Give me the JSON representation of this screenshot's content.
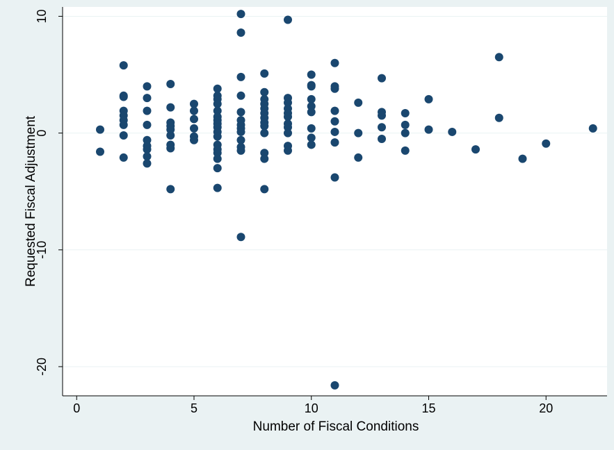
{
  "chart_data": {
    "type": "scatter",
    "title": "",
    "xlabel": "Number of Fiscal Conditions",
    "ylabel": "Requested Fiscal Adjustment",
    "xlim": [
      -0.6,
      22.6
    ],
    "ylim": [
      -22.5,
      10.8
    ],
    "xticks": [
      0,
      5,
      10,
      15,
      20
    ],
    "yticks": [
      -20,
      -10,
      0,
      10
    ],
    "grid": true,
    "legend": "none",
    "colors": {
      "outer_background": "#eaf2f3",
      "plot_background": "#ffffff",
      "marker": "#1a476f",
      "gridline": "#eaf2f3"
    },
    "points": [
      {
        "x": 1,
        "y": 0.3
      },
      {
        "x": 1,
        "y": -1.6
      },
      {
        "x": 2,
        "y": 5.8
      },
      {
        "x": 2,
        "y": 3.2
      },
      {
        "x": 2,
        "y": 3.1
      },
      {
        "x": 2,
        "y": 1.9
      },
      {
        "x": 2,
        "y": 1.5
      },
      {
        "x": 2,
        "y": 1.1
      },
      {
        "x": 2,
        "y": 0.7
      },
      {
        "x": 2,
        "y": -0.2
      },
      {
        "x": 2,
        "y": -2.1
      },
      {
        "x": 3,
        "y": 4.0
      },
      {
        "x": 3,
        "y": 3.0
      },
      {
        "x": 3,
        "y": 1.9
      },
      {
        "x": 3,
        "y": 0.7
      },
      {
        "x": 3,
        "y": -0.6
      },
      {
        "x": 3,
        "y": -1.1
      },
      {
        "x": 3,
        "y": -1.4
      },
      {
        "x": 3,
        "y": -2.0
      },
      {
        "x": 3,
        "y": -2.6
      },
      {
        "x": 4,
        "y": 4.2
      },
      {
        "x": 4,
        "y": 2.2
      },
      {
        "x": 4,
        "y": 0.9
      },
      {
        "x": 4,
        "y": 0.6
      },
      {
        "x": 4,
        "y": 0.3
      },
      {
        "x": 4,
        "y": -0.2
      },
      {
        "x": 4,
        "y": -1.0
      },
      {
        "x": 4,
        "y": -1.3
      },
      {
        "x": 4,
        "y": -4.8
      },
      {
        "x": 5,
        "y": 2.5
      },
      {
        "x": 5,
        "y": 1.9
      },
      {
        "x": 5,
        "y": 1.2
      },
      {
        "x": 5,
        "y": 0.4
      },
      {
        "x": 5,
        "y": -0.3
      },
      {
        "x": 5,
        "y": -0.6
      },
      {
        "x": 6,
        "y": 3.8
      },
      {
        "x": 6,
        "y": 3.2
      },
      {
        "x": 6,
        "y": 2.9
      },
      {
        "x": 6,
        "y": 2.5
      },
      {
        "x": 6,
        "y": 1.9
      },
      {
        "x": 6,
        "y": 1.4
      },
      {
        "x": 6,
        "y": 1.1
      },
      {
        "x": 6,
        "y": 0.8
      },
      {
        "x": 6,
        "y": 0.5
      },
      {
        "x": 6,
        "y": 0.1
      },
      {
        "x": 6,
        "y": -0.3
      },
      {
        "x": 6,
        "y": -1.0
      },
      {
        "x": 6,
        "y": -1.4
      },
      {
        "x": 6,
        "y": -1.7
      },
      {
        "x": 6,
        "y": -2.2
      },
      {
        "x": 6,
        "y": -3.0
      },
      {
        "x": 6,
        "y": -4.7
      },
      {
        "x": 7,
        "y": 10.2
      },
      {
        "x": 7,
        "y": 8.6
      },
      {
        "x": 7,
        "y": 4.8
      },
      {
        "x": 7,
        "y": 3.2
      },
      {
        "x": 7,
        "y": 1.8
      },
      {
        "x": 7,
        "y": 1.1
      },
      {
        "x": 7,
        "y": 0.7
      },
      {
        "x": 7,
        "y": 0.4
      },
      {
        "x": 7,
        "y": 0.1
      },
      {
        "x": 7,
        "y": -0.6
      },
      {
        "x": 7,
        "y": -1.2
      },
      {
        "x": 7,
        "y": -1.5
      },
      {
        "x": 7,
        "y": -8.9
      },
      {
        "x": 8,
        "y": 5.1
      },
      {
        "x": 8,
        "y": 3.5
      },
      {
        "x": 8,
        "y": 2.9
      },
      {
        "x": 8,
        "y": 2.5
      },
      {
        "x": 8,
        "y": 2.1
      },
      {
        "x": 8,
        "y": 1.7
      },
      {
        "x": 8,
        "y": 1.3
      },
      {
        "x": 8,
        "y": 0.9
      },
      {
        "x": 8,
        "y": 0.6
      },
      {
        "x": 8,
        "y": 0.0
      },
      {
        "x": 8,
        "y": -1.7
      },
      {
        "x": 8,
        "y": -2.2
      },
      {
        "x": 8,
        "y": -4.8
      },
      {
        "x": 9,
        "y": 9.7
      },
      {
        "x": 9,
        "y": 3.0
      },
      {
        "x": 9,
        "y": 2.6
      },
      {
        "x": 9,
        "y": 2.1
      },
      {
        "x": 9,
        "y": 1.7
      },
      {
        "x": 9,
        "y": 1.4
      },
      {
        "x": 9,
        "y": 0.8
      },
      {
        "x": 9,
        "y": 0.5
      },
      {
        "x": 9,
        "y": 0.0
      },
      {
        "x": 9,
        "y": -1.1
      },
      {
        "x": 9,
        "y": -1.5
      },
      {
        "x": 10,
        "y": 5.0
      },
      {
        "x": 10,
        "y": 4.1
      },
      {
        "x": 10,
        "y": 4.0
      },
      {
        "x": 10,
        "y": 2.9
      },
      {
        "x": 10,
        "y": 2.3
      },
      {
        "x": 10,
        "y": 1.8
      },
      {
        "x": 10,
        "y": 0.4
      },
      {
        "x": 10,
        "y": -0.4
      },
      {
        "x": 10,
        "y": -1.0
      },
      {
        "x": 11,
        "y": 6.0
      },
      {
        "x": 11,
        "y": 4.0
      },
      {
        "x": 11,
        "y": 3.8
      },
      {
        "x": 11,
        "y": 1.9
      },
      {
        "x": 11,
        "y": 1.0
      },
      {
        "x": 11,
        "y": 0.1
      },
      {
        "x": 11,
        "y": -0.8
      },
      {
        "x": 11,
        "y": -3.8
      },
      {
        "x": 11,
        "y": -21.6
      },
      {
        "x": 12,
        "y": 2.6
      },
      {
        "x": 12,
        "y": 0.0
      },
      {
        "x": 12,
        "y": -2.1
      },
      {
        "x": 13,
        "y": 4.7
      },
      {
        "x": 13,
        "y": 1.8
      },
      {
        "x": 13,
        "y": 1.5
      },
      {
        "x": 13,
        "y": 0.5
      },
      {
        "x": 13,
        "y": -0.5
      },
      {
        "x": 14,
        "y": 1.7
      },
      {
        "x": 14,
        "y": 0.7
      },
      {
        "x": 14,
        "y": 0.0
      },
      {
        "x": 14,
        "y": -1.5
      },
      {
        "x": 15,
        "y": 2.9
      },
      {
        "x": 15,
        "y": 0.3
      },
      {
        "x": 16,
        "y": 0.1
      },
      {
        "x": 17,
        "y": -1.4
      },
      {
        "x": 18,
        "y": 6.5
      },
      {
        "x": 18,
        "y": 1.3
      },
      {
        "x": 19,
        "y": -2.2
      },
      {
        "x": 20,
        "y": -0.9
      },
      {
        "x": 22,
        "y": 0.4
      }
    ]
  }
}
